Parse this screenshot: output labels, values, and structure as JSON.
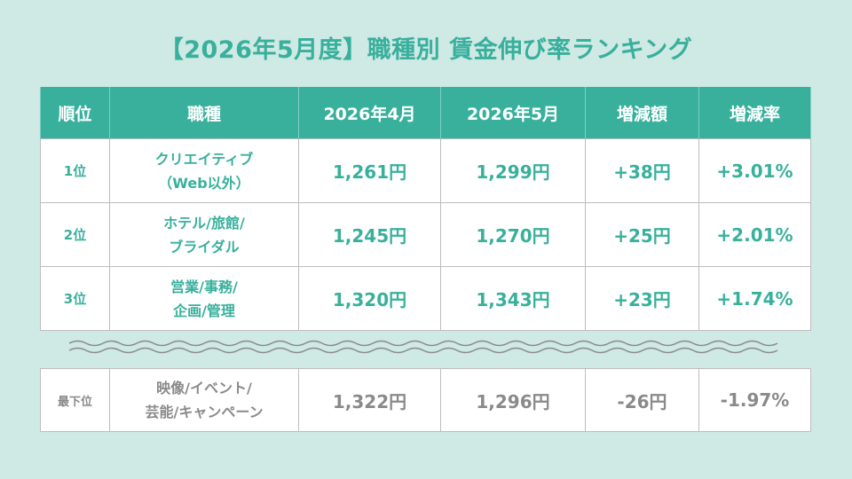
{
  "title": "【2026年5月度】職種別 賃金伸び率ランキング",
  "headers": [
    "順位",
    "職種",
    "2026年4月",
    "2026年5月",
    "増減額",
    "増減率"
  ],
  "rows": [
    {
      "rank": "1位",
      "job_line1": "クリエイティブ",
      "job_line2": "（Web以外）",
      "apr": "1,261円",
      "may": "1,299円",
      "diff": "+38円",
      "rate": "+3.01%"
    },
    {
      "rank": "2位",
      "job_line1": "ホテル/旅館/",
      "job_line2": "ブライダル",
      "apr": "1,245円",
      "may": "1,270円",
      "diff": "+25円",
      "rate": "+2.01%"
    },
    {
      "rank": "3位",
      "job_line1": "営業/事務/",
      "job_line2": "企画/管理",
      "apr": "1,320円",
      "may": "1,343円",
      "diff": "+23円",
      "rate": "+1.74%"
    }
  ],
  "bottom_row": {
    "rank": "最下位",
    "job_line1": "映像/イベント/",
    "job_line2": "芸能/キャンペーン",
    "apr": "1,322円",
    "may": "1,296円",
    "diff": "-26円",
    "rate": "-1.97%"
  },
  "colors": {
    "accent": "#38b09c",
    "background": "#cfe9e5",
    "muted_text": "#8a8a8a",
    "border": "#bdbdbd"
  }
}
